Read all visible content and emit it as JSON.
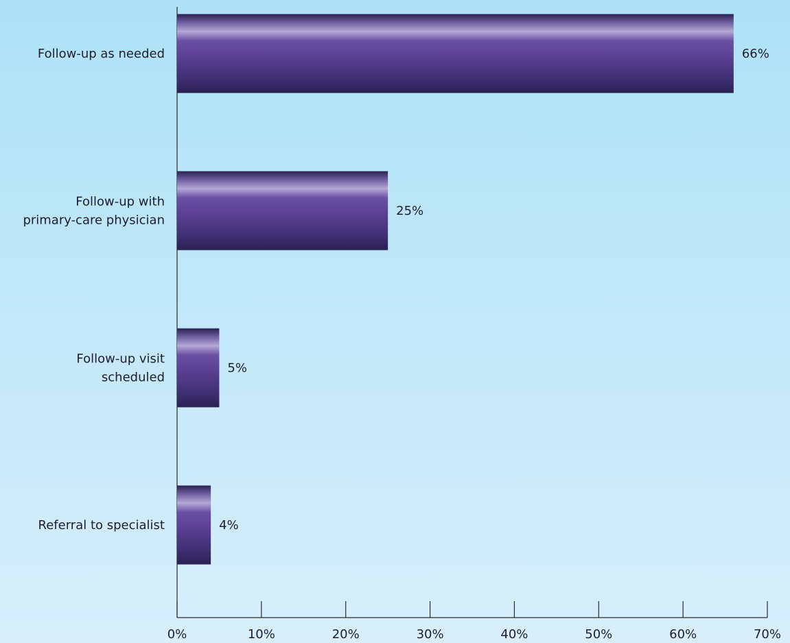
{
  "chart_data": {
    "type": "bar",
    "orientation": "horizontal",
    "categories": [
      [
        "Follow-up as needed"
      ],
      [
        "Follow-up with",
        "primary-care physician"
      ],
      [
        "Follow-up visit",
        "scheduled"
      ],
      [
        "Referral to specialist"
      ]
    ],
    "values": [
      66,
      25,
      5,
      4
    ],
    "value_labels": [
      "66%",
      "25%",
      "5%",
      "4%"
    ],
    "xlim": [
      0,
      70
    ],
    "x_ticks": [
      0,
      10,
      20,
      30,
      40,
      50,
      60,
      70
    ],
    "x_tick_labels": [
      "0%",
      "10%",
      "20%",
      "30%",
      "40%",
      "50%",
      "60%",
      "70%"
    ],
    "grid": false,
    "legend": "none",
    "colors": {
      "bar_dark": "#2a2152",
      "bar_mid": "#5a3f92",
      "bar_highlight": "#b4a8d6",
      "axis": "#2a2a2a",
      "background_top": "#aee2f8",
      "background_bottom": "#d8effb"
    }
  }
}
